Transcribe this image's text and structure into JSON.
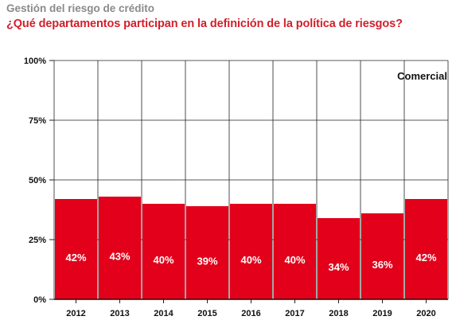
{
  "header": {
    "supertitle": "Gestión del riesgo de crédito",
    "title": "¿Qué departamentos participan en la definición de la política de riesgos?"
  },
  "chart_data": {
    "type": "bar",
    "panel_label": "Comercial",
    "categories": [
      "2012",
      "2013",
      "2014",
      "2015",
      "2016",
      "2017",
      "2018",
      "2019",
      "2020"
    ],
    "values": [
      42,
      43,
      40,
      39,
      40,
      40,
      34,
      36,
      42
    ],
    "value_labels": [
      "42%",
      "43%",
      "40%",
      "39%",
      "40%",
      "40%",
      "34%",
      "36%",
      "42%"
    ],
    "ylim": [
      0,
      100
    ],
    "yticks": [
      0,
      25,
      50,
      75,
      100
    ],
    "ytick_labels": [
      "0%",
      "25%",
      "50%",
      "75%",
      "100%"
    ],
    "grid": true,
    "bar_color": "#e2001a",
    "xlabel": "",
    "ylabel": ""
  }
}
